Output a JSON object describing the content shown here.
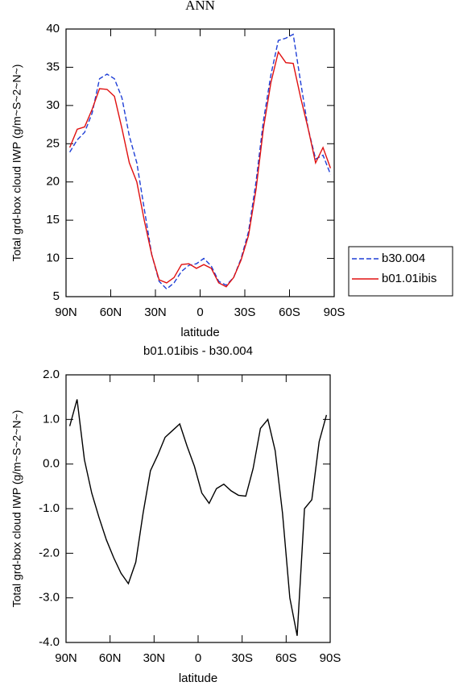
{
  "chart_data": [
    {
      "type": "line",
      "title": "ANN",
      "ylabel": "Total grd-box cloud IWP (g/m~S~2~N~)",
      "xlabel": "latitude",
      "x": [
        87.5,
        82.5,
        77.5,
        72.5,
        67.5,
        62.5,
        57.5,
        52.5,
        47.5,
        42.5,
        37.5,
        32.5,
        27.5,
        22.5,
        17.5,
        12.5,
        7.5,
        2.5,
        -2.5,
        -7.5,
        -12.5,
        -17.5,
        -22.5,
        -27.5,
        -32.5,
        -37.5,
        -42.5,
        -47.5,
        -52.5,
        -57.5,
        -62.5,
        -67.5,
        -72.5,
        -77.5,
        -82.5,
        -87.5
      ],
      "series": [
        {
          "name": "b30.004",
          "color": "#1f3fd6",
          "dash": true,
          "values": [
            23.9,
            25.5,
            26.5,
            29,
            33.5,
            34.1,
            33.5,
            31,
            26,
            22.5,
            16.5,
            10.5,
            7,
            6,
            6.8,
            8.3,
            9.1,
            9.3,
            10,
            9,
            7,
            6.5,
            7.5,
            10,
            13.5,
            20,
            28,
            34,
            38.5,
            38.8,
            39.3,
            33,
            27,
            23,
            23.5,
            21
          ]
        },
        {
          "name": "b01.01ibis",
          "color": "#e01010",
          "dash": false,
          "values": [
            24.5,
            26.9,
            27.2,
            29.5,
            32.2,
            32.1,
            31.2,
            27,
            22.5,
            20,
            15,
            10.5,
            7.2,
            6.8,
            7.5,
            9.2,
            9.3,
            8.7,
            9.2,
            8.7,
            6.8,
            6.3,
            7.5,
            9.8,
            13,
            19,
            27,
            33,
            37,
            35.6,
            35.5,
            31,
            27,
            22.5,
            24.5,
            21.8
          ]
        }
      ],
      "xlim": [
        90,
        -90
      ],
      "xticks": [
        {
          "value": 90,
          "label": "90N"
        },
        {
          "value": 60,
          "label": "60N"
        },
        {
          "value": 30,
          "label": "30N"
        },
        0,
        {
          "value": -30,
          "label": "30S"
        },
        {
          "value": -60,
          "label": "60S"
        },
        {
          "value": -90,
          "label": "90S"
        }
      ],
      "ylim": [
        5,
        40
      ],
      "yticks": [
        5,
        10,
        15,
        20,
        25,
        30,
        35,
        40
      ],
      "legend": "right"
    },
    {
      "type": "line",
      "title": "b01.01ibis - b30.004",
      "ylabel": "Total grd-box cloud IWP (g/m~S~2~N~)",
      "xlabel": "latitude",
      "x": [
        87.5,
        82.5,
        77.5,
        72.5,
        67.5,
        62.5,
        57.5,
        52.5,
        47.5,
        42.5,
        37.5,
        32.5,
        27.5,
        22.5,
        17.5,
        12.5,
        7.5,
        2.5,
        -2.5,
        -7.5,
        -12.5,
        -17.5,
        -22.5,
        -27.5,
        -32.5,
        -37.5,
        -42.5,
        -47.5,
        -52.5,
        -57.5,
        -62.5,
        -67.5,
        -72.5,
        -77.5,
        -82.5,
        -87.5
      ],
      "series": [
        {
          "color": "#000000",
          "dash": false,
          "values": [
            0.85,
            1.45,
            0.1,
            -0.65,
            -1.2,
            -1.7,
            -2.1,
            -2.45,
            -2.68,
            -2.2,
            -1.1,
            -0.15,
            0.2,
            0.6,
            0.75,
            0.9,
            0.4,
            -0.05,
            -0.65,
            -0.88,
            -0.55,
            -0.45,
            -0.6,
            -0.7,
            -0.72,
            -0.1,
            0.8,
            1.0,
            0.3,
            -1.1,
            -3.0,
            -3.85,
            -1.0,
            -0.8,
            0.5,
            1.1
          ]
        }
      ],
      "xlim": [
        90,
        -90
      ],
      "xticks": [
        {
          "value": 90,
          "label": "90N"
        },
        {
          "value": 60,
          "label": "60N"
        },
        {
          "value": 30,
          "label": "30N"
        },
        0,
        {
          "value": -30,
          "label": "30S"
        },
        {
          "value": -60,
          "label": "60S"
        },
        {
          "value": -90,
          "label": "90S"
        }
      ],
      "ylim": [
        -4,
        2
      ],
      "yticks": [
        {
          "value": -4,
          "label": "-4.0"
        },
        {
          "value": -3,
          "label": "-3.0"
        },
        {
          "value": -2,
          "label": "-2.0"
        },
        {
          "value": -1,
          "label": "-1.0"
        },
        {
          "value": 0,
          "label": "0.0"
        },
        {
          "value": 1,
          "label": "1.0"
        },
        {
          "value": 2,
          "label": "2.0"
        }
      ]
    }
  ]
}
